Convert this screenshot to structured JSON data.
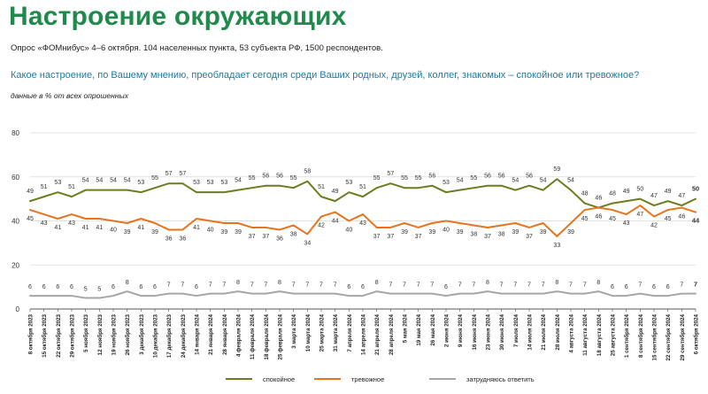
{
  "header": {
    "title": "Настроение окружающих",
    "subtitle": "Опрос «ФОМнибус» 4–6 октября. 104 населенных пункта, 53 субъекта РФ, 1500 респондентов.",
    "question": "Какое настроение, по Вашему мнению, преобладает сегодня среди Ваших родных, друзей, коллег, знакомых – спокойное или тревожное?",
    "units": "данные в % от всех опрошенных"
  },
  "colors": {
    "title": "#1f8a4c",
    "question": "#1f7a9e",
    "axis": "#555555",
    "grid": "#d9d9d9"
  },
  "chart_data": {
    "type": "line",
    "ylim": [
      0,
      80
    ],
    "yticks": [
      0,
      20,
      40,
      60,
      80
    ],
    "grid": true,
    "legend_position": "bottom",
    "categories": [
      "8 октября 2023",
      "15 октября 2023",
      "22 октября 2023",
      "29 октября 2023",
      "5 ноября 2023",
      "12 ноября 2023",
      "19 ноября 2023",
      "26 ноября 2023",
      "3 декабря 2023",
      "10 декабря 2023",
      "17 декабря 2023",
      "24 декабря 2023",
      "14 января 2024",
      "21 января 2024",
      "28 января 2024",
      "4 февраля 2024",
      "11 февраля 2024",
      "18 февраля 2024",
      "25 февраля 2024",
      "3 марта 2024",
      "10 марта 2024",
      "25 марта 2024",
      "31 марта 2024",
      "7 апреля 2024",
      "14 апреля 2024",
      "21 апреля 2024",
      "28 апреля 2024",
      "5 мая 2024",
      "19 мая 2024",
      "26 мая 2024",
      "2 июня 2024",
      "9 июня 2024",
      "16 июня 2024",
      "23 июня 2024",
      "30 июня 2024",
      "7 июля 2024",
      "14 июля 2024",
      "21 июля 2024",
      "28 июля 2024",
      "4 августа 2024",
      "11 августа 2024",
      "18 августа 2024",
      "25 августа 2024",
      "1 сентября 2024",
      "8 сентября 2024",
      "15 сентября 2024",
      "22 сентября 2024",
      "29 сентября 2024",
      "6 октября 2024"
    ],
    "series": [
      {
        "name": "спокойное",
        "color": "#6b7d1f",
        "values": [
          49,
          51,
          53,
          51,
          54,
          54,
          54,
          54,
          53,
          55,
          57,
          57,
          53,
          53,
          53,
          54,
          55,
          56,
          56,
          55,
          58,
          51,
          49,
          53,
          51,
          55,
          57,
          55,
          55,
          56,
          53,
          54,
          55,
          56,
          56,
          54,
          56,
          54,
          59,
          54,
          48,
          46,
          48,
          49,
          50,
          47,
          49,
          47,
          50
        ]
      },
      {
        "name": "тревожное",
        "color": "#e8731f",
        "values": [
          45,
          43,
          41,
          43,
          41,
          41,
          40,
          39,
          41,
          39,
          36,
          36,
          41,
          40,
          39,
          39,
          37,
          37,
          36,
          38,
          34,
          42,
          44,
          40,
          43,
          37,
          37,
          39,
          37,
          39,
          40,
          39,
          38,
          37,
          38,
          39,
          37,
          39,
          33,
          39,
          45,
          46,
          45,
          43,
          47,
          42,
          45,
          46,
          44
        ]
      },
      {
        "name": "затрудняюсь ответить",
        "color": "#a6a6a6",
        "values": [
          6,
          6,
          6,
          6,
          5,
          5,
          6,
          8,
          6,
          6,
          7,
          7,
          6,
          7,
          7,
          8,
          7,
          7,
          8,
          7,
          7,
          7,
          7,
          6,
          6,
          8,
          7,
          7,
          7,
          7,
          6,
          7,
          7,
          8,
          7,
          7,
          7,
          7,
          8,
          7,
          7,
          8,
          6,
          6,
          7,
          6,
          6,
          7,
          7
        ]
      }
    ]
  }
}
